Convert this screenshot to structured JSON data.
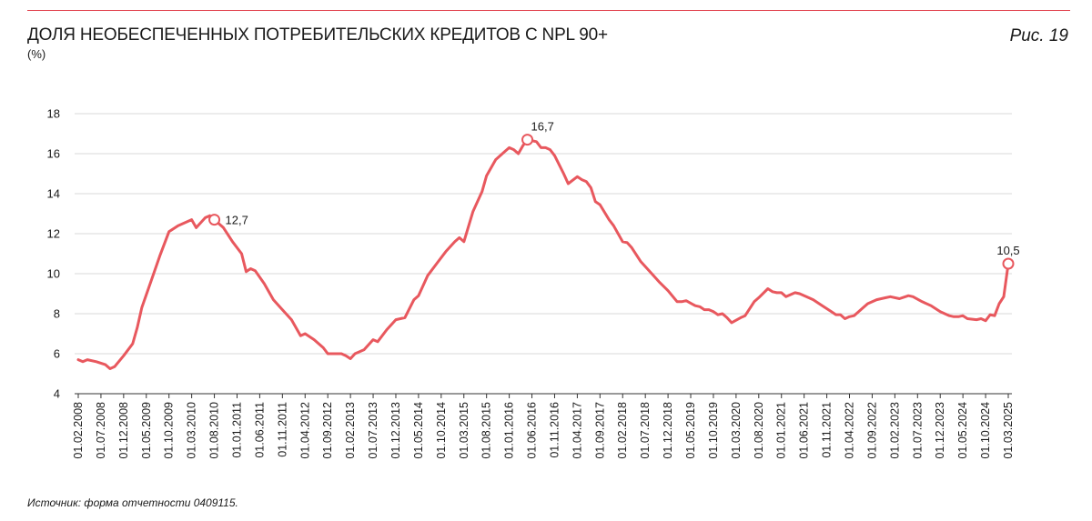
{
  "header": {
    "title": "ДОЛЯ НЕОБЕСПЕЧЕННЫХ ПОТРЕБИТЕЛЬСКИХ КРЕДИТОВ С NPL 90+",
    "unit": "(%)",
    "figure_label": "Рис. 19"
  },
  "footer": {
    "source": "Источник: форма отчетности 0409115."
  },
  "colors": {
    "line": "#e8585e",
    "rule": "#e2434f",
    "grid": "#d9d9d9"
  },
  "chart_data": {
    "type": "line",
    "title": "ДОЛЯ НЕОБЕСПЕЧЕННЫХ ПОТРЕБИТЕЛЬСКИХ КРЕДИТОВ С NPL 90+",
    "ylabel": "(%)",
    "xlabel": "",
    "ylim": [
      4,
      18
    ],
    "yticks": [
      4,
      6,
      8,
      10,
      12,
      14,
      16,
      18
    ],
    "grid": "horizontal",
    "x_start": "2008-02",
    "x_end": "2025-03",
    "xticks": [
      "01.02.2008",
      "01.07.2008",
      "01.12.2008",
      "01.05.2009",
      "01.10.2009",
      "01.03.2010",
      "01.08.2010",
      "01.01.2011",
      "01.06.2011",
      "01.11.2011",
      "01.04.2012",
      "01.09.2012",
      "01.02.2013",
      "01.07.2013",
      "01.12.2013",
      "01.05.2014",
      "01.10.2014",
      "01.03.2015",
      "01.08.2015",
      "01.01.2016",
      "01.06.2016",
      "01.11.2016",
      "01.04.2017",
      "01.09.2017",
      "01.02.2018",
      "01.07.2018",
      "01.12.2018",
      "01.05.2019",
      "01.10.2019",
      "01.03.2020",
      "01.08.2020",
      "01.01.2021",
      "01.06.2021",
      "01.11.2021",
      "01.04.2022",
      "01.09.2022",
      "01.02.2023",
      "01.07.2023",
      "01.12.2023",
      "01.05.2024",
      "01.10.2024",
      "01.03.2025"
    ],
    "series": [
      {
        "name": "",
        "points": [
          [
            "2008-02",
            5.7
          ],
          [
            "2008-03",
            5.6
          ],
          [
            "2008-04",
            5.7
          ],
          [
            "2008-06",
            5.6
          ],
          [
            "2008-08",
            5.45
          ],
          [
            "2008-09",
            5.25
          ],
          [
            "2008-10",
            5.35
          ],
          [
            "2008-12",
            5.9
          ],
          [
            "2009-02",
            6.5
          ],
          [
            "2009-03",
            7.3
          ],
          [
            "2009-04",
            8.3
          ],
          [
            "2009-06",
            9.6
          ],
          [
            "2009-08",
            10.9
          ],
          [
            "2009-10",
            12.1
          ],
          [
            "2009-12",
            12.4
          ],
          [
            "2010-03",
            12.7
          ],
          [
            "2010-04",
            12.3
          ],
          [
            "2010-06",
            12.8
          ],
          [
            "2010-07",
            12.9
          ],
          [
            "2010-08",
            12.7
          ],
          [
            "2010-10",
            12.3
          ],
          [
            "2010-12",
            11.6
          ],
          [
            "2011-02",
            11.0
          ],
          [
            "2011-03",
            10.1
          ],
          [
            "2011-04",
            10.25
          ],
          [
            "2011-05",
            10.15
          ],
          [
            "2011-07",
            9.5
          ],
          [
            "2011-09",
            8.7
          ],
          [
            "2011-11",
            8.2
          ],
          [
            "2012-01",
            7.7
          ],
          [
            "2012-03",
            6.9
          ],
          [
            "2012-04",
            7.0
          ],
          [
            "2012-06",
            6.7
          ],
          [
            "2012-08",
            6.3
          ],
          [
            "2012-09",
            6.0
          ],
          [
            "2012-10",
            6.0
          ],
          [
            "2012-12",
            6.0
          ],
          [
            "2013-01",
            5.9
          ],
          [
            "2013-02",
            5.75
          ],
          [
            "2013-03",
            6.0
          ],
          [
            "2013-05",
            6.2
          ],
          [
            "2013-07",
            6.7
          ],
          [
            "2013-08",
            6.6
          ],
          [
            "2013-10",
            7.2
          ],
          [
            "2013-12",
            7.7
          ],
          [
            "2014-02",
            7.8
          ],
          [
            "2014-04",
            8.7
          ],
          [
            "2014-05",
            8.9
          ],
          [
            "2014-07",
            9.9
          ],
          [
            "2014-09",
            10.5
          ],
          [
            "2014-11",
            11.1
          ],
          [
            "2015-01",
            11.6
          ],
          [
            "2015-02",
            11.8
          ],
          [
            "2015-03",
            11.6
          ],
          [
            "2015-05",
            13.1
          ],
          [
            "2015-07",
            14.1
          ],
          [
            "2015-08",
            14.9
          ],
          [
            "2015-10",
            15.7
          ],
          [
            "2015-12",
            16.1
          ],
          [
            "2016-01",
            16.3
          ],
          [
            "2016-02",
            16.2
          ],
          [
            "2016-03",
            16.0
          ],
          [
            "2016-04",
            16.4
          ],
          [
            "2016-05",
            16.7
          ],
          [
            "2016-07",
            16.6
          ],
          [
            "2016-08",
            16.3
          ],
          [
            "2016-09",
            16.3
          ],
          [
            "2016-10",
            16.2
          ],
          [
            "2016-11",
            15.9
          ],
          [
            "2017-01",
            15.0
          ],
          [
            "2017-02",
            14.5
          ],
          [
            "2017-04",
            14.85
          ],
          [
            "2017-05",
            14.7
          ],
          [
            "2017-06",
            14.6
          ],
          [
            "2017-07",
            14.3
          ],
          [
            "2017-08",
            13.6
          ],
          [
            "2017-09",
            13.45
          ],
          [
            "2017-11",
            12.7
          ],
          [
            "2017-12",
            12.4
          ],
          [
            "2018-02",
            11.6
          ],
          [
            "2018-03",
            11.55
          ],
          [
            "2018-04",
            11.3
          ],
          [
            "2018-06",
            10.6
          ],
          [
            "2018-08",
            10.1
          ],
          [
            "2018-10",
            9.6
          ],
          [
            "2018-12",
            9.15
          ],
          [
            "2019-02",
            8.6
          ],
          [
            "2019-03",
            8.6
          ],
          [
            "2019-04",
            8.65
          ],
          [
            "2019-06",
            8.4
          ],
          [
            "2019-07",
            8.35
          ],
          [
            "2019-08",
            8.2
          ],
          [
            "2019-09",
            8.2
          ],
          [
            "2019-10",
            8.1
          ],
          [
            "2019-11",
            7.95
          ],
          [
            "2019-12",
            8.0
          ],
          [
            "2020-01",
            7.8
          ],
          [
            "2020-02",
            7.55
          ],
          [
            "2020-04",
            7.8
          ],
          [
            "2020-05",
            7.9
          ],
          [
            "2020-07",
            8.6
          ],
          [
            "2020-08",
            8.8
          ],
          [
            "2020-10",
            9.25
          ],
          [
            "2020-11",
            9.1
          ],
          [
            "2020-12",
            9.05
          ],
          [
            "2021-01",
            9.05
          ],
          [
            "2021-02",
            8.85
          ],
          [
            "2021-04",
            9.05
          ],
          [
            "2021-05",
            9.0
          ],
          [
            "2021-07",
            8.8
          ],
          [
            "2021-08",
            8.7
          ],
          [
            "2021-10",
            8.4
          ],
          [
            "2021-12",
            8.1
          ],
          [
            "2022-01",
            7.95
          ],
          [
            "2022-02",
            7.95
          ],
          [
            "2022-03",
            7.75
          ],
          [
            "2022-04",
            7.85
          ],
          [
            "2022-05",
            7.9
          ],
          [
            "2022-07",
            8.3
          ],
          [
            "2022-08",
            8.5
          ],
          [
            "2022-10",
            8.7
          ],
          [
            "2022-12",
            8.8
          ],
          [
            "2023-01",
            8.85
          ],
          [
            "2023-03",
            8.75
          ],
          [
            "2023-05",
            8.9
          ],
          [
            "2023-06",
            8.85
          ],
          [
            "2023-08",
            8.6
          ],
          [
            "2023-10",
            8.4
          ],
          [
            "2023-12",
            8.1
          ],
          [
            "2024-02",
            7.9
          ],
          [
            "2024-03",
            7.85
          ],
          [
            "2024-04",
            7.85
          ],
          [
            "2024-05",
            7.9
          ],
          [
            "2024-06",
            7.75
          ],
          [
            "2024-08",
            7.7
          ],
          [
            "2024-09",
            7.75
          ],
          [
            "2024-10",
            7.65
          ],
          [
            "2024-11",
            7.95
          ],
          [
            "2024-12",
            7.9
          ],
          [
            "2025-01",
            8.5
          ],
          [
            "2025-02",
            8.85
          ],
          [
            "2025-03",
            10.5
          ]
        ]
      }
    ],
    "annotations": [
      {
        "x": "2010-08",
        "y": 12.7,
        "label": "12,7"
      },
      {
        "x": "2016-05",
        "y": 16.7,
        "label": "16,7"
      },
      {
        "x": "2025-03",
        "y": 10.5,
        "label": "10,5"
      }
    ]
  }
}
